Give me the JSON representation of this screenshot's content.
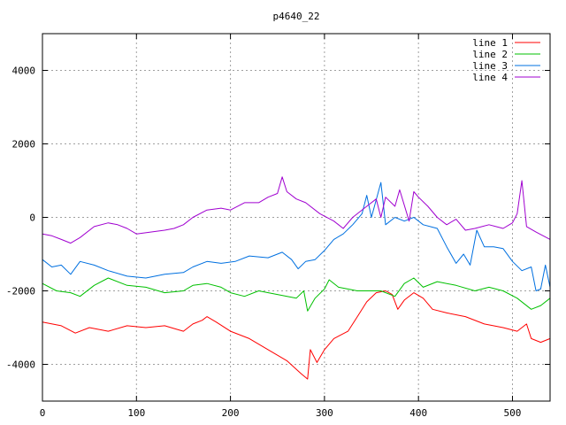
{
  "chart_data": {
    "type": "line",
    "title": "p4640_22",
    "xlabel": "",
    "ylabel": "",
    "xlim": [
      0,
      540
    ],
    "ylim": [
      -5000,
      5000
    ],
    "xticks": [
      0,
      100,
      200,
      300,
      400,
      500
    ],
    "yticks": [
      -4000,
      -2000,
      0,
      2000,
      4000
    ],
    "grid": true,
    "legend": "top-right",
    "series": [
      {
        "name": "line 1",
        "color": "#ff0000",
        "points": [
          [
            0,
            -2850
          ],
          [
            20,
            -2950
          ],
          [
            35,
            -3150
          ],
          [
            50,
            -3000
          ],
          [
            70,
            -3100
          ],
          [
            90,
            -2950
          ],
          [
            110,
            -3000
          ],
          [
            130,
            -2950
          ],
          [
            150,
            -3100
          ],
          [
            160,
            -2900
          ],
          [
            170,
            -2800
          ],
          [
            175,
            -2700
          ],
          [
            185,
            -2850
          ],
          [
            200,
            -3100
          ],
          [
            220,
            -3300
          ],
          [
            240,
            -3600
          ],
          [
            260,
            -3900
          ],
          [
            275,
            -4250
          ],
          [
            282,
            -4400
          ],
          [
            285,
            -3600
          ],
          [
            292,
            -3950
          ],
          [
            300,
            -3600
          ],
          [
            310,
            -3300
          ],
          [
            325,
            -3100
          ],
          [
            335,
            -2700
          ],
          [
            345,
            -2300
          ],
          [
            355,
            -2050
          ],
          [
            365,
            -2000
          ],
          [
            372,
            -2100
          ],
          [
            378,
            -2500
          ],
          [
            385,
            -2250
          ],
          [
            395,
            -2050
          ],
          [
            405,
            -2200
          ],
          [
            415,
            -2500
          ],
          [
            430,
            -2600
          ],
          [
            450,
            -2700
          ],
          [
            470,
            -2900
          ],
          [
            490,
            -3000
          ],
          [
            505,
            -3100
          ],
          [
            515,
            -2900
          ],
          [
            520,
            -3300
          ],
          [
            530,
            -3400
          ],
          [
            540,
            -3300
          ]
        ]
      },
      {
        "name": "line 2",
        "color": "#00c000",
        "points": [
          [
            0,
            -1800
          ],
          [
            15,
            -2000
          ],
          [
            30,
            -2050
          ],
          [
            40,
            -2150
          ],
          [
            55,
            -1850
          ],
          [
            70,
            -1650
          ],
          [
            90,
            -1850
          ],
          [
            110,
            -1900
          ],
          [
            130,
            -2050
          ],
          [
            150,
            -2000
          ],
          [
            160,
            -1850
          ],
          [
            175,
            -1800
          ],
          [
            190,
            -1900
          ],
          [
            200,
            -2050
          ],
          [
            215,
            -2150
          ],
          [
            230,
            -2000
          ],
          [
            250,
            -2100
          ],
          [
            270,
            -2200
          ],
          [
            278,
            -2000
          ],
          [
            282,
            -2550
          ],
          [
            290,
            -2200
          ],
          [
            300,
            -1950
          ],
          [
            305,
            -1700
          ],
          [
            315,
            -1900
          ],
          [
            335,
            -2000
          ],
          [
            360,
            -2000
          ],
          [
            375,
            -2150
          ],
          [
            385,
            -1800
          ],
          [
            395,
            -1650
          ],
          [
            405,
            -1900
          ],
          [
            420,
            -1750
          ],
          [
            440,
            -1850
          ],
          [
            460,
            -2000
          ],
          [
            475,
            -1900
          ],
          [
            490,
            -2000
          ],
          [
            505,
            -2200
          ],
          [
            520,
            -2500
          ],
          [
            530,
            -2400
          ],
          [
            540,
            -2200
          ]
        ]
      },
      {
        "name": "line 3",
        "color": "#0070e0",
        "points": [
          [
            0,
            -1150
          ],
          [
            10,
            -1350
          ],
          [
            20,
            -1300
          ],
          [
            30,
            -1550
          ],
          [
            40,
            -1200
          ],
          [
            55,
            -1300
          ],
          [
            70,
            -1450
          ],
          [
            90,
            -1600
          ],
          [
            110,
            -1650
          ],
          [
            130,
            -1550
          ],
          [
            150,
            -1500
          ],
          [
            160,
            -1350
          ],
          [
            175,
            -1200
          ],
          [
            190,
            -1250
          ],
          [
            205,
            -1200
          ],
          [
            220,
            -1050
          ],
          [
            240,
            -1100
          ],
          [
            255,
            -950
          ],
          [
            265,
            -1150
          ],
          [
            272,
            -1400
          ],
          [
            280,
            -1200
          ],
          [
            290,
            -1150
          ],
          [
            300,
            -900
          ],
          [
            310,
            -600
          ],
          [
            320,
            -450
          ],
          [
            330,
            -200
          ],
          [
            340,
            100
          ],
          [
            345,
            600
          ],
          [
            350,
            0
          ],
          [
            360,
            950
          ],
          [
            365,
            -200
          ],
          [
            375,
            0
          ],
          [
            385,
            -100
          ],
          [
            395,
            0
          ],
          [
            405,
            -200
          ],
          [
            420,
            -300
          ],
          [
            430,
            -800
          ],
          [
            440,
            -1250
          ],
          [
            448,
            -1000
          ],
          [
            455,
            -1300
          ],
          [
            462,
            -350
          ],
          [
            470,
            -800
          ],
          [
            480,
            -800
          ],
          [
            490,
            -850
          ],
          [
            500,
            -1200
          ],
          [
            510,
            -1450
          ],
          [
            520,
            -1350
          ],
          [
            525,
            -2000
          ],
          [
            530,
            -1950
          ],
          [
            535,
            -1300
          ],
          [
            540,
            -1900
          ]
        ]
      },
      {
        "name": "line 4",
        "color": "#a000d0",
        "points": [
          [
            0,
            -450
          ],
          [
            10,
            -500
          ],
          [
            20,
            -600
          ],
          [
            30,
            -700
          ],
          [
            40,
            -550
          ],
          [
            55,
            -250
          ],
          [
            70,
            -150
          ],
          [
            80,
            -200
          ],
          [
            90,
            -300
          ],
          [
            100,
            -450
          ],
          [
            115,
            -400
          ],
          [
            130,
            -350
          ],
          [
            140,
            -300
          ],
          [
            150,
            -200
          ],
          [
            160,
            0
          ],
          [
            175,
            200
          ],
          [
            190,
            250
          ],
          [
            200,
            200
          ],
          [
            215,
            400
          ],
          [
            230,
            400
          ],
          [
            240,
            550
          ],
          [
            250,
            650
          ],
          [
            255,
            1100
          ],
          [
            260,
            700
          ],
          [
            270,
            500
          ],
          [
            280,
            400
          ],
          [
            295,
            100
          ],
          [
            310,
            -100
          ],
          [
            320,
            -300
          ],
          [
            330,
            0
          ],
          [
            345,
            300
          ],
          [
            355,
            500
          ],
          [
            360,
            0
          ],
          [
            365,
            550
          ],
          [
            375,
            300
          ],
          [
            380,
            750
          ],
          [
            390,
            -100
          ],
          [
            395,
            700
          ],
          [
            400,
            550
          ],
          [
            410,
            300
          ],
          [
            420,
            0
          ],
          [
            430,
            -200
          ],
          [
            440,
            -50
          ],
          [
            450,
            -350
          ],
          [
            460,
            -300
          ],
          [
            475,
            -200
          ],
          [
            490,
            -300
          ],
          [
            500,
            -150
          ],
          [
            505,
            100
          ],
          [
            510,
            1000
          ],
          [
            515,
            -250
          ],
          [
            525,
            -400
          ],
          [
            540,
            -600
          ]
        ]
      }
    ]
  }
}
